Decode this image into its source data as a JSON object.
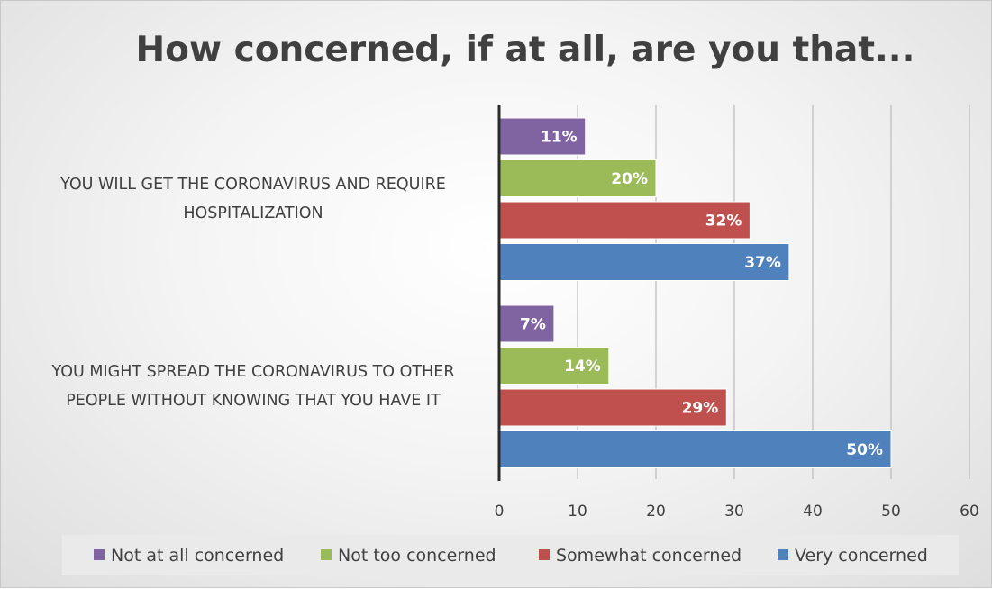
{
  "chart_data": {
    "type": "bar",
    "orientation": "horizontal",
    "title": "How concerned, if at all, are you that...",
    "categories": [
      [
        "YOU WILL GET THE CORONAVIRUS AND REQUIRE",
        "HOSPITALIZATION"
      ],
      [
        "YOU MIGHT SPREAD THE CORONAVIRUS TO OTHER",
        "PEOPLE WITHOUT KNOWING THAT YOU HAVE IT"
      ]
    ],
    "series": [
      {
        "name": "Not at all concerned",
        "color": "#8064a2",
        "values": [
          11,
          7
        ],
        "labels": [
          "11%",
          "7%"
        ]
      },
      {
        "name": "Not too concerned",
        "color": "#9bbb59",
        "values": [
          20,
          14
        ],
        "labels": [
          "20%",
          "14%"
        ]
      },
      {
        "name": "Somewhat concerned",
        "color": "#c0504d",
        "values": [
          32,
          29
        ],
        "labels": [
          "32%",
          "29%"
        ]
      },
      {
        "name": "Very concerned",
        "color": "#4f81bd",
        "values": [
          37,
          50
        ],
        "labels": [
          "37%",
          "50%"
        ]
      }
    ],
    "xlim": [
      0,
      60
    ],
    "xticks": [
      0,
      10,
      20,
      30,
      40,
      50,
      60
    ],
    "grid": true,
    "legend_position": "bottom"
  }
}
